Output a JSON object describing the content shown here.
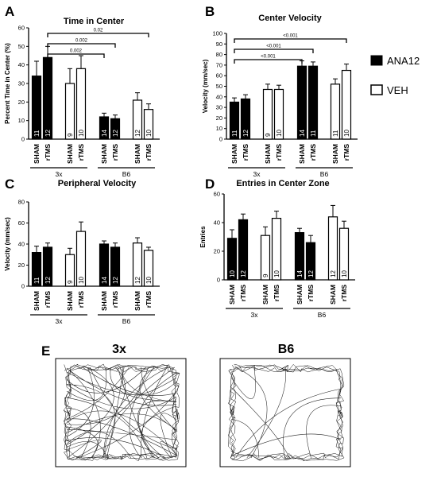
{
  "panel_labels": {
    "A": "A",
    "B": "B",
    "C": "C",
    "D": "D",
    "E": "E"
  },
  "legend": {
    "series": [
      {
        "name": "ANA12",
        "fill": "#000000"
      },
      {
        "name": "VEH",
        "fill": "#ffffff"
      }
    ]
  },
  "categories": [
    "SHAM",
    "rTMS",
    "SHAM",
    "rTMS",
    "SHAM",
    "rTMS",
    "SHAM",
    "rTMS"
  ],
  "groups": [
    "3x",
    "B6"
  ],
  "bar_fills": [
    "#000000",
    "#000000",
    "#ffffff",
    "#ffffff",
    "#000000",
    "#000000",
    "#ffffff",
    "#ffffff"
  ],
  "chart_data": [
    {
      "type": "bar",
      "panel": "A",
      "title": "Time in Center",
      "ylabel": "Percent Time in Center (%)",
      "ylim": [
        0,
        60
      ],
      "yticks": [
        0,
        10,
        20,
        30,
        40,
        50,
        60
      ],
      "values": [
        34,
        44,
        30,
        38,
        12,
        11,
        21,
        16
      ],
      "errors": [
        8,
        6,
        8,
        7,
        2,
        2,
        4,
        3
      ],
      "n": [
        "11",
        "12",
        "9",
        "10",
        "14",
        "12",
        "12",
        "10"
      ],
      "significance": [
        {
          "from": 1,
          "to": 7,
          "label": "0.02"
        },
        {
          "from": 1,
          "to": 5,
          "label": "0.002"
        },
        {
          "from": 1,
          "to": 4,
          "label": "0.002"
        }
      ]
    },
    {
      "type": "bar",
      "panel": "B",
      "title": "Center Velocity",
      "ylabel": "Velocity (mm/sec)",
      "ylim": [
        0,
        100
      ],
      "yticks": [
        0,
        10,
        20,
        30,
        40,
        50,
        60,
        70,
        80,
        90,
        100
      ],
      "values": [
        35,
        38,
        47,
        47,
        69,
        69,
        52,
        65
      ],
      "errors": [
        4,
        4,
        5,
        4,
        5,
        4,
        5,
        6
      ],
      "n": [
        "11",
        "12",
        "9",
        "10",
        "14",
        "11",
        "11",
        "10"
      ],
      "significance": [
        {
          "from": 0,
          "to": 7,
          "label": "<0.001"
        },
        {
          "from": 0,
          "to": 5,
          "label": "<0.001"
        },
        {
          "from": 0,
          "to": 4,
          "label": "<0.001"
        }
      ]
    },
    {
      "type": "bar",
      "panel": "C",
      "title": "Peripheral Velocity",
      "ylabel": "Velocity (mm/sec)",
      "ylim": [
        0,
        80
      ],
      "yticks": [
        0,
        20,
        40,
        60,
        80
      ],
      "values": [
        32,
        37,
        30,
        52,
        40,
        37,
        41,
        34
      ],
      "errors": [
        6,
        4,
        6,
        9,
        3,
        4,
        5,
        3
      ],
      "n": [
        "11",
        "12",
        "9",
        "10",
        "14",
        "12",
        "12",
        "10"
      ],
      "significance": []
    },
    {
      "type": "bar",
      "panel": "D",
      "title": "Entries in  Center Zone",
      "ylabel": "Entries",
      "ylim": [
        0,
        60
      ],
      "yticks": [
        0,
        20,
        40,
        60
      ],
      "values": [
        29,
        42,
        31,
        43,
        33,
        26,
        44,
        36
      ],
      "errors": [
        6,
        4,
        6,
        5,
        3,
        5,
        8,
        5
      ],
      "n": [
        "10",
        "12",
        "9",
        "10",
        "14",
        "12",
        "12",
        "10"
      ],
      "significance": []
    }
  ],
  "tracks": {
    "left_title": "3x",
    "right_title": "B6"
  }
}
